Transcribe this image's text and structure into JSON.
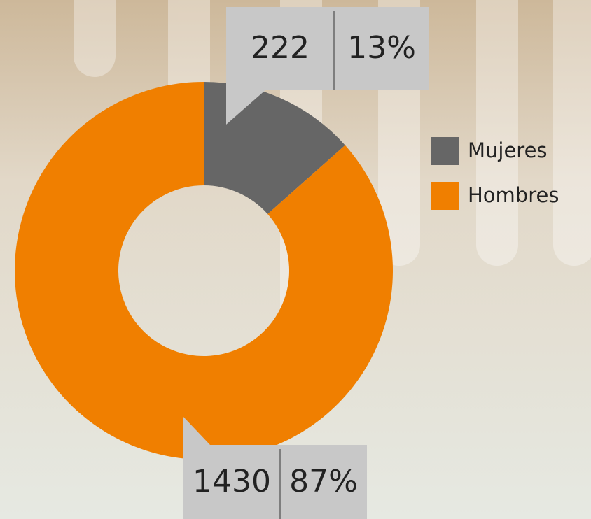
{
  "chart_data": {
    "type": "donut",
    "categories": [
      "Mujeres",
      "Hombres"
    ],
    "values": [
      222,
      1430
    ],
    "shares": [
      {
        "value": 13,
        "label": "13%"
      },
      {
        "value": 87,
        "label": "87%"
      }
    ],
    "colors": [
      "#666666",
      "#f07f00"
    ],
    "legend": "right"
  }
}
